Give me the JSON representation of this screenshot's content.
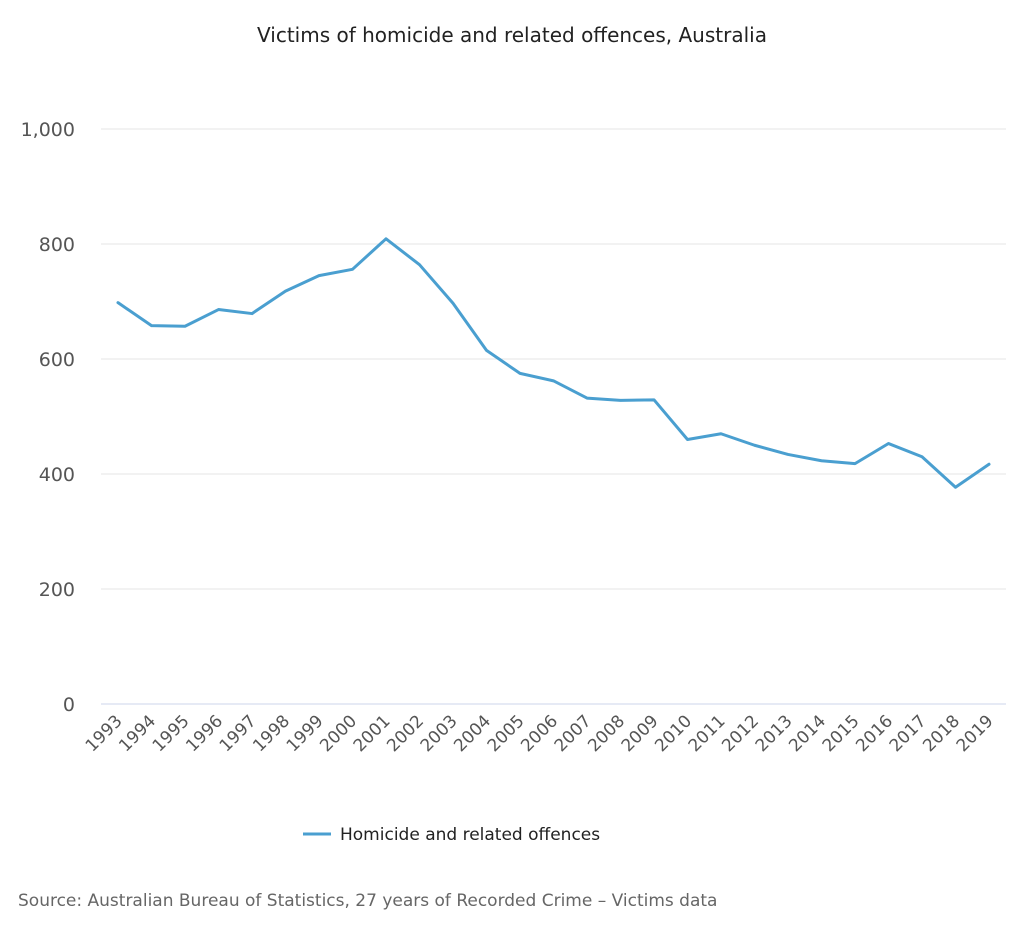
{
  "chart_data": {
    "type": "line",
    "title": "Victims of homicide and related offences, Australia",
    "xlabel": "",
    "ylabel": "",
    "ylim": [
      0,
      1000
    ],
    "yticks": [
      0,
      200,
      400,
      600,
      800,
      1000
    ],
    "ytick_labels": [
      "0",
      "200",
      "400",
      "600",
      "800",
      "1,000"
    ],
    "grid": true,
    "legend_position": "bottom",
    "categories": [
      "1993",
      "1994",
      "1995",
      "1996",
      "1997",
      "1998",
      "1999",
      "2000",
      "2001",
      "2002",
      "2003",
      "2004",
      "2005",
      "2006",
      "2007",
      "2008",
      "2009",
      "2010",
      "2011",
      "2012",
      "2013",
      "2014",
      "2015",
      "2016",
      "2017",
      "2018",
      "2019"
    ],
    "series": [
      {
        "name": "Homicide and related offences",
        "color": "#4a9fd0",
        "values": [
          698,
          658,
          657,
          686,
          679,
          718,
          745,
          756,
          809,
          764,
          697,
          615,
          575,
          562,
          532,
          528,
          529,
          460,
          470,
          450,
          434,
          423,
          418,
          453,
          430,
          377,
          417
        ]
      }
    ],
    "source": "Source: Australian Bureau of Statistics, 27 years of Recorded Crime – Victims data"
  }
}
